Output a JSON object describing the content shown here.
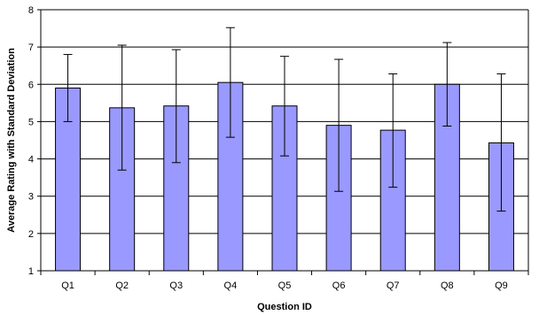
{
  "chart_data": {
    "type": "bar",
    "title": "",
    "xlabel": "Question ID",
    "ylabel": "Average Rating with Standard Deviation",
    "categories": [
      "Q1",
      "Q2",
      "Q3",
      "Q4",
      "Q5",
      "Q6",
      "Q7",
      "Q8",
      "Q9"
    ],
    "values": [
      5.9,
      5.37,
      5.42,
      6.05,
      5.42,
      4.9,
      4.77,
      6.0,
      4.43
    ],
    "error_low": [
      5.0,
      3.7,
      3.9,
      4.58,
      4.08,
      3.13,
      3.24,
      4.88,
      2.6
    ],
    "error_high": [
      6.8,
      7.05,
      6.93,
      7.52,
      6.75,
      6.67,
      6.28,
      7.12,
      6.28
    ],
    "ylim": [
      1,
      8
    ],
    "yticks": [
      "1",
      "2",
      "3",
      "4",
      "5",
      "6",
      "7",
      "8"
    ],
    "grid": true,
    "legend": "none",
    "bar_color": "#9999ff"
  }
}
